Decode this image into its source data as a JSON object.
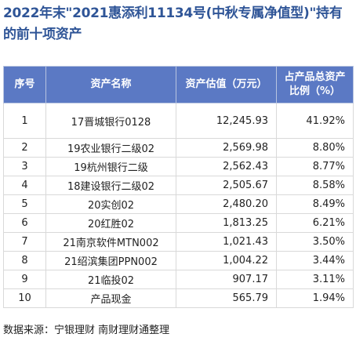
{
  "title": "2022年末\"2021惠添利11134号(中秋专属净值型)\"持有的前十项资产",
  "table": {
    "headers": [
      "序号",
      "资产名称",
      "资产估值（万元）",
      "占产品总资产比例（%）"
    ],
    "rows": [
      {
        "idx": "1",
        "name": "17晋城银行0128",
        "value": "12,245.93",
        "pct": "41.92%"
      },
      {
        "idx": "2",
        "name": "19农业银行二级02",
        "value": "2,569.98",
        "pct": "8.80%"
      },
      {
        "idx": "3",
        "name": "19杭州银行二级",
        "value": "2,562.43",
        "pct": "8.77%"
      },
      {
        "idx": "4",
        "name": "18建设银行二级02",
        "value": "2,505.67",
        "pct": "8.58%"
      },
      {
        "idx": "5",
        "name": "20实创02",
        "value": "2,480.20",
        "pct": "8.49%"
      },
      {
        "idx": "6",
        "name": "20红胜02",
        "value": "1,813.25",
        "pct": "6.21%"
      },
      {
        "idx": "7",
        "name": "21南京软件MTN002",
        "value": "1,021.43",
        "pct": "3.50%"
      },
      {
        "idx": "8",
        "name": "21绍滨集团PPN002",
        "value": "1,004.22",
        "pct": "3.44%"
      },
      {
        "idx": "9",
        "name": "21临投02",
        "value": "907.17",
        "pct": "3.11%"
      },
      {
        "idx": "10",
        "name": "产品现金",
        "value": "565.79",
        "pct": "1.94%"
      }
    ]
  },
  "source": "数据来源：宁银理财 南财理财通整理",
  "colors": {
    "title": "#2f5597",
    "header_bg": "#5b79c4",
    "header_text": "#ffffff",
    "border": "#d9d9d9"
  }
}
